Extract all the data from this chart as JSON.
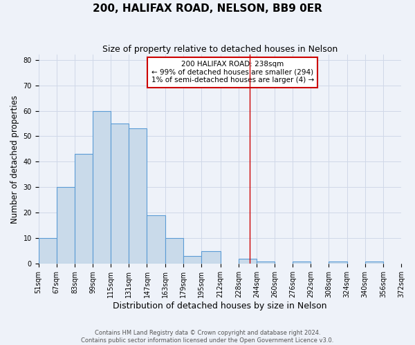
{
  "title": "200, HALIFAX ROAD, NELSON, BB9 0ER",
  "subtitle": "Size of property relative to detached houses in Nelson",
  "xlabel": "Distribution of detached houses by size in Nelson",
  "ylabel": "Number of detached properties",
  "bin_edges": [
    51,
    67,
    83,
    99,
    115,
    131,
    147,
    163,
    179,
    195,
    212,
    228,
    244,
    260,
    276,
    292,
    308,
    324,
    340,
    356,
    372
  ],
  "bar_heights": [
    10,
    30,
    43,
    60,
    55,
    53,
    19,
    10,
    3,
    5,
    0,
    2,
    1,
    0,
    1,
    0,
    1,
    0,
    1,
    0
  ],
  "bar_facecolor": "#c9daea",
  "bar_edgecolor": "#5b9bd5",
  "grid_color": "#d0d8e8",
  "background_color": "#eef2f9",
  "axes_background_color": "#eef2f9",
  "red_line_x": 238,
  "red_line_color": "#cc0000",
  "ylim": [
    0,
    82
  ],
  "yticks": [
    0,
    10,
    20,
    30,
    40,
    50,
    60,
    70,
    80
  ],
  "x_tick_labels": [
    "51sqm",
    "67sqm",
    "83sqm",
    "99sqm",
    "115sqm",
    "131sqm",
    "147sqm",
    "163sqm",
    "179sqm",
    "195sqm",
    "212sqm",
    "228sqm",
    "244sqm",
    "260sqm",
    "276sqm",
    "292sqm",
    "308sqm",
    "324sqm",
    "340sqm",
    "356sqm",
    "372sqm"
  ],
  "annotation_line1": "200 HALIFAX ROAD: 238sqm",
  "annotation_line2": "← 99% of detached houses are smaller (294)",
  "annotation_line3": "1% of semi-detached houses are larger (4) →",
  "annotation_box_edgecolor": "#cc0000",
  "annotation_fontsize": 7.5,
  "footer_text": "Contains HM Land Registry data © Crown copyright and database right 2024.\nContains public sector information licensed under the Open Government Licence v3.0.",
  "title_fontsize": 11,
  "subtitle_fontsize": 9,
  "xlabel_fontsize": 9,
  "ylabel_fontsize": 8.5,
  "tick_fontsize": 7
}
